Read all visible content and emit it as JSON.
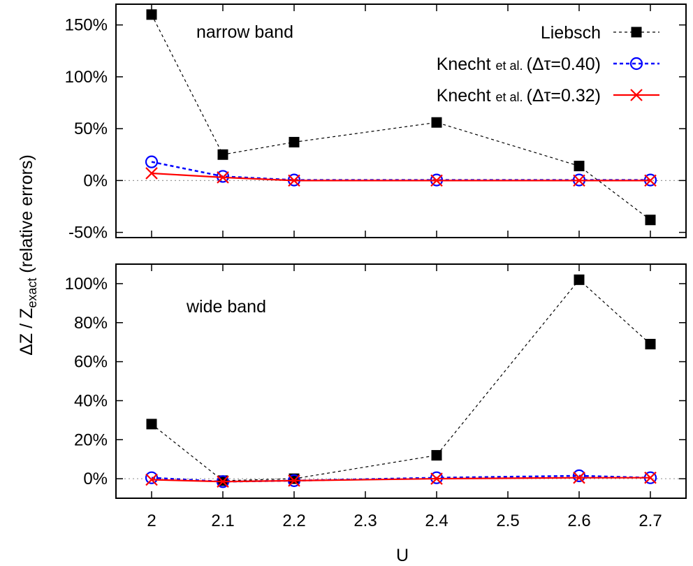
{
  "chart_data": {
    "type": "line",
    "shared_xlabel": "U",
    "shared_ylabel": {
      "main": "ΔZ / Z",
      "subscript": "exact",
      "suffix": " (relative errors)"
    },
    "x_ticks": [
      "2",
      "2.1",
      "2.2",
      "2.3",
      "2.4",
      "2.5",
      "2.6",
      "2.7"
    ],
    "xlim": [
      1.95,
      2.75
    ],
    "legend": {
      "placement": "top-right",
      "entries": [
        {
          "key": "liebsch",
          "text": "Liebsch"
        },
        {
          "key": "knecht40",
          "name": "Knecht",
          "small": "et al.",
          "param": "(Δτ=0.40)"
        },
        {
          "key": "knecht32",
          "name": "Knecht",
          "small": "et al.",
          "param": "(Δτ=0.32)"
        }
      ]
    },
    "colors": {
      "liebsch": "#000000",
      "knecht40": "#0000ff",
      "knecht32": "#ff0000",
      "zero_line": "#999999"
    },
    "panels": [
      {
        "label": "narrow band",
        "ylim": [
          -55,
          170
        ],
        "y_ticks": [
          {
            "value": 150,
            "label": "150%"
          },
          {
            "value": 100,
            "label": "100%"
          },
          {
            "value": 50,
            "label": "50%"
          },
          {
            "value": 0,
            "label": "0%"
          },
          {
            "value": -50,
            "label": "-50%"
          }
        ],
        "series": [
          {
            "key": "liebsch",
            "x": [
              2,
              2.1,
              2.2,
              2.4,
              2.6,
              2.7
            ],
            "y": [
              160,
              25,
              37,
              56,
              14,
              -38
            ]
          },
          {
            "key": "knecht40",
            "x": [
              2,
              2.1,
              2.2,
              2.4,
              2.6,
              2.7
            ],
            "y": [
              18,
              4,
              0.5,
              0.5,
              0.5,
              0.5
            ]
          },
          {
            "key": "knecht32",
            "x": [
              2,
              2.1,
              2.2,
              2.4,
              2.6,
              2.7
            ],
            "y": [
              7,
              3,
              0,
              0,
              0,
              0
            ]
          }
        ]
      },
      {
        "label": "wide band",
        "ylim": [
          -10,
          110
        ],
        "y_ticks": [
          {
            "value": 100,
            "label": "100%"
          },
          {
            "value": 80,
            "label": "80%"
          },
          {
            "value": 60,
            "label": "60%"
          },
          {
            "value": 40,
            "label": "40%"
          },
          {
            "value": 20,
            "label": "20%"
          },
          {
            "value": 0,
            "label": "0%"
          }
        ],
        "series": [
          {
            "key": "liebsch",
            "x": [
              2,
              2.1,
              2.2,
              2.4,
              2.6,
              2.7
            ],
            "y": [
              28,
              -1,
              0,
              12,
              102,
              69
            ]
          },
          {
            "key": "knecht40",
            "x": [
              2,
              2.1,
              2.2,
              2.4,
              2.6,
              2.7
            ],
            "y": [
              0.5,
              -1.5,
              -1,
              0.5,
              1.5,
              0.5
            ]
          },
          {
            "key": "knecht32",
            "x": [
              2,
              2.1,
              2.2,
              2.4,
              2.6,
              2.7
            ],
            "y": [
              -0.5,
              -1.5,
              -1,
              0,
              0.5,
              0.5
            ]
          }
        ]
      }
    ]
  }
}
